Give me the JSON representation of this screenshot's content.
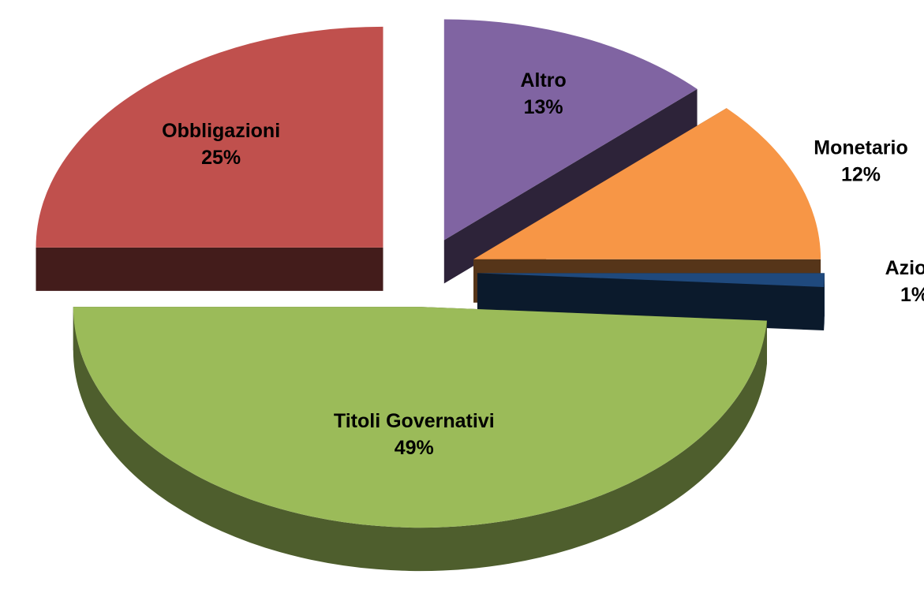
{
  "chart_data": {
    "type": "pie3d",
    "categories": [
      "Altro",
      "Monetario",
      "Azioni",
      "Titoli Governativi",
      "Obbligazioni"
    ],
    "values": [
      13,
      12,
      1,
      49,
      25
    ],
    "value_labels": [
      "13%",
      "12%",
      "1%",
      "49%",
      "25%"
    ],
    "colors": [
      "#8064a2",
      "#f79646",
      "#1f497d",
      "#9bbb59",
      "#c0504d"
    ]
  }
}
